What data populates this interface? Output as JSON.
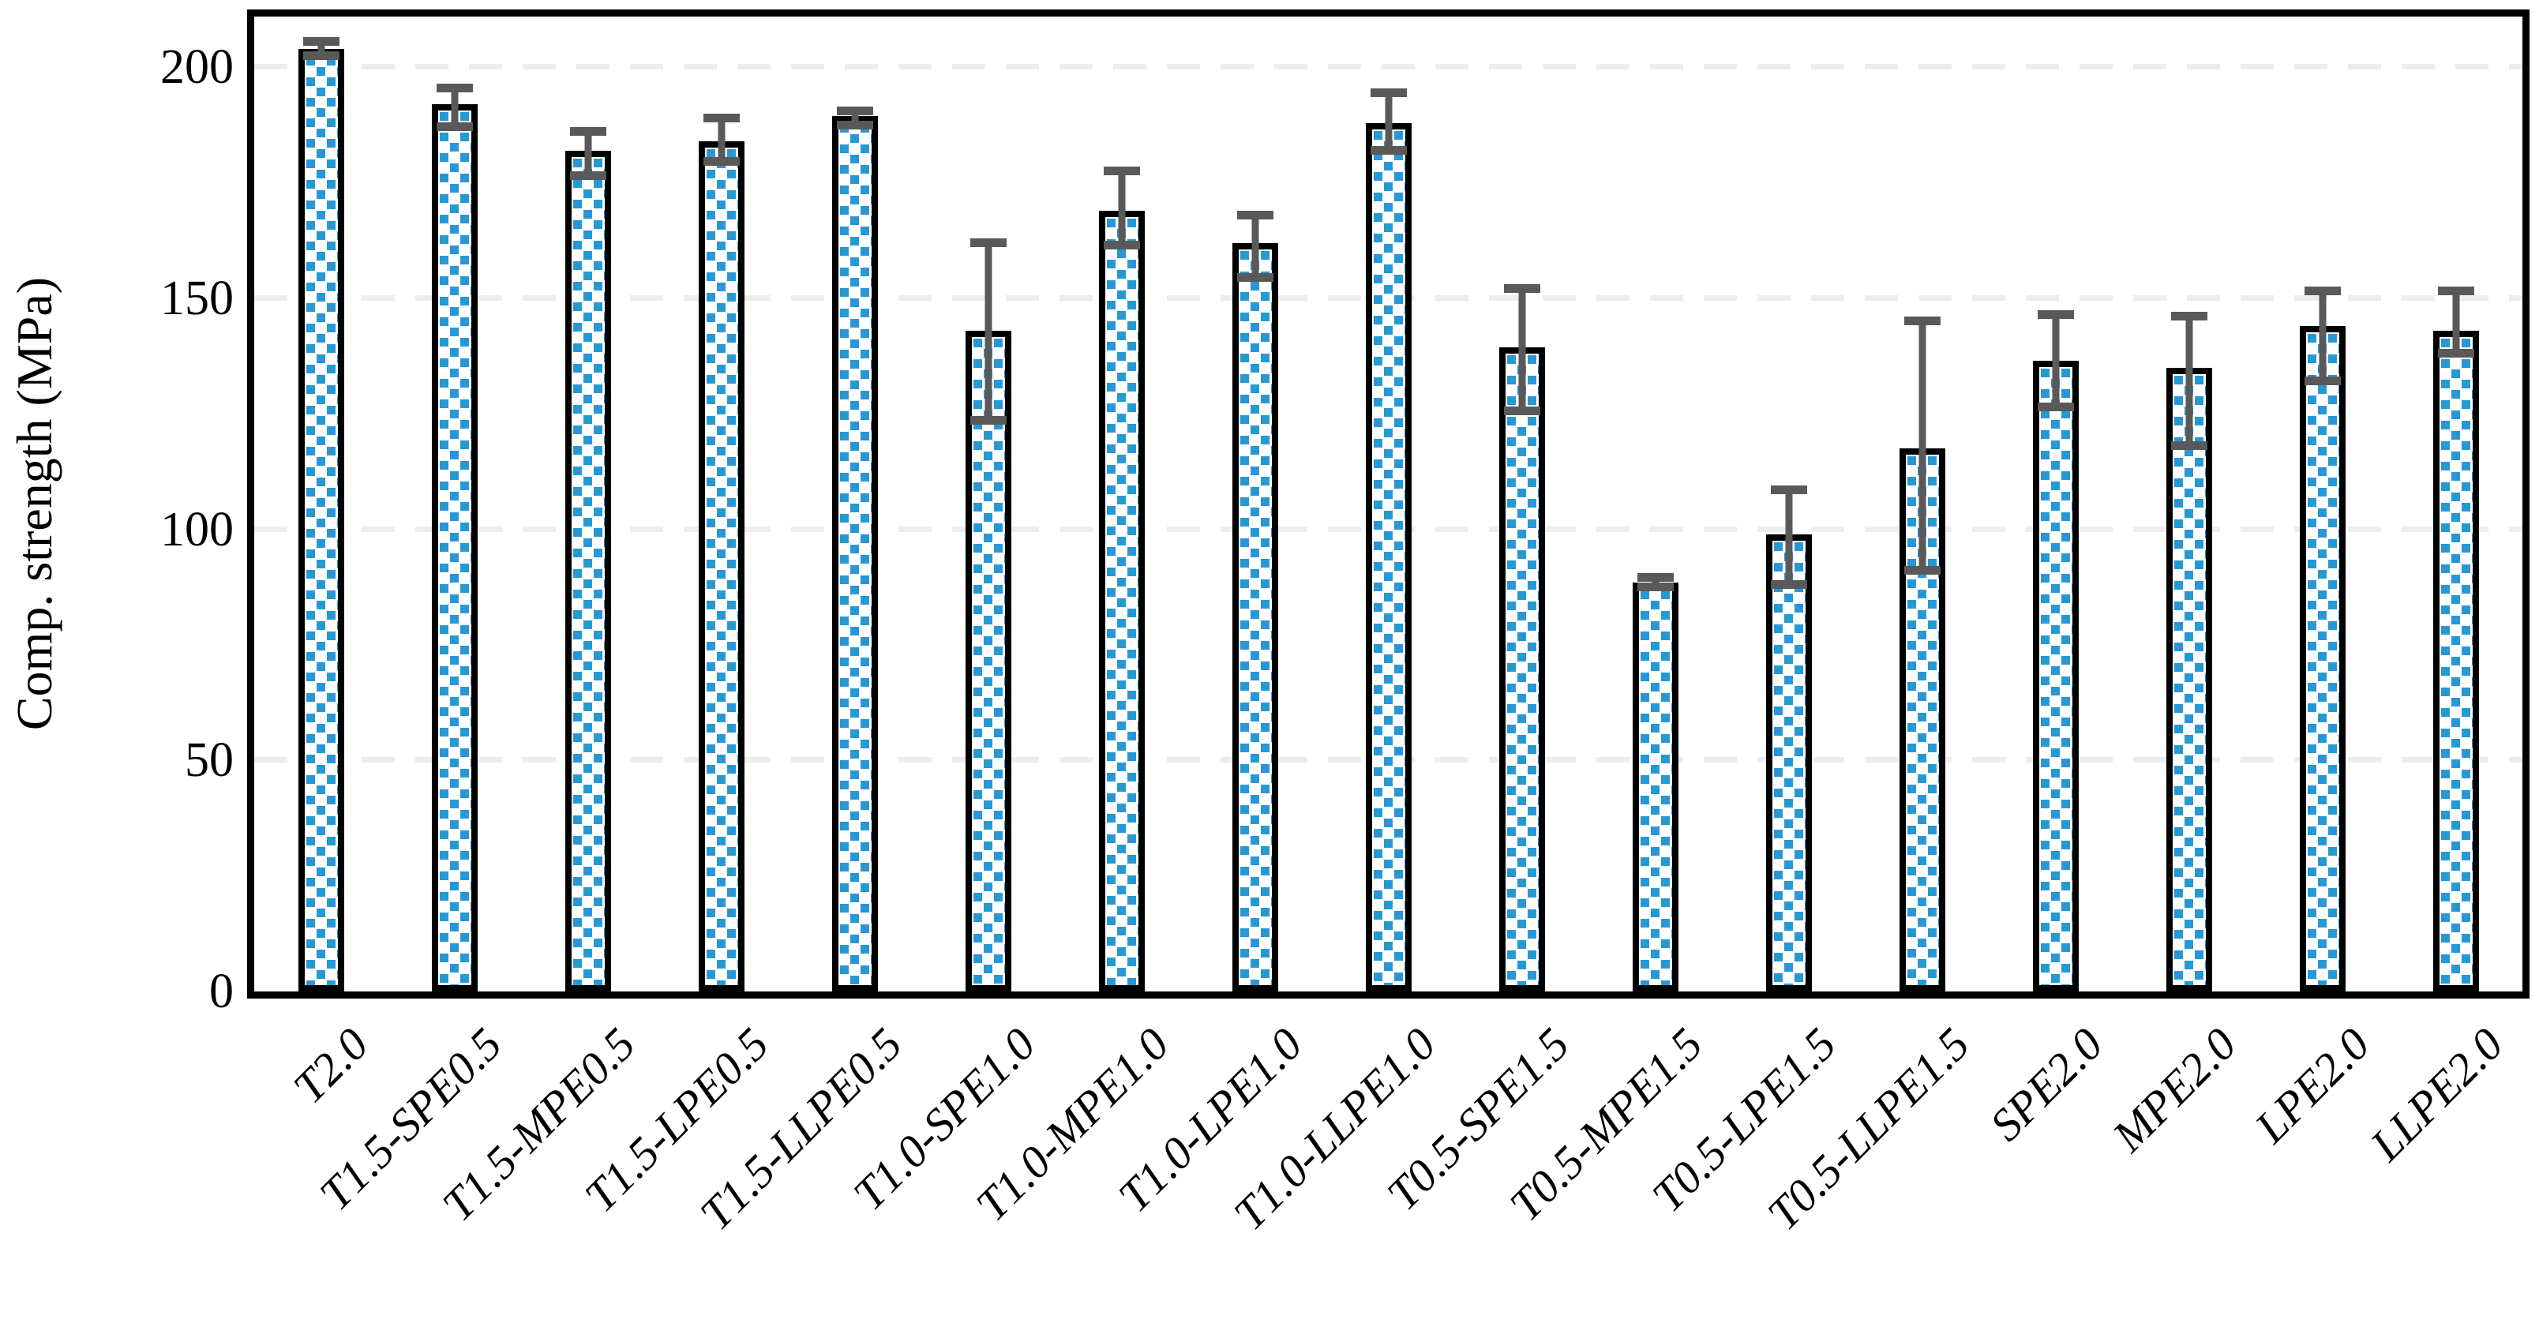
{
  "figure": {
    "background_color": "#ffffff",
    "bar_fill_pattern_color": "#2798d4",
    "bar_border_color": "#000000",
    "error_bar_color": "#595959",
    "gridline_color": "#ededed"
  },
  "chart_data": {
    "type": "bar",
    "title": "",
    "xlabel": "",
    "ylabel": "Comp. strength (MPa)",
    "ylim": [
      0,
      211
    ],
    "yticks": [
      0,
      50,
      100,
      150,
      200
    ],
    "grid": "horizontal dashed gridlines at 50, 100, 150, 200",
    "legend_position": "none",
    "categories": [
      "T2.0",
      "T1.5-SPE0.5",
      "T1.5-MPE0.5",
      "T1.5-LPE0.5",
      "T1.5-LLPE0.5",
      "T1.0-SPE1.0",
      "T1.0-MPE1.0",
      "T1.0-LPE1.0",
      "T1.0-LLPE1.0",
      "T0.5-SPE1.5",
      "T0.5-MPE1.5",
      "T0.5-LPE1.5",
      "T0.5-LLPE1.5",
      "SPE2.0",
      "MPE2.0",
      "LPE2.0",
      "LLPE2.0"
    ],
    "series": [
      {
        "name": "Comp. strength (MPa)",
        "values": [
          204,
          192,
          182,
          184,
          189.5,
          143,
          169,
          162,
          188,
          139.5,
          88.5,
          99,
          117.5,
          136.5,
          135,
          144,
          143
        ],
        "error_high": [
          205.5,
          195.5,
          186,
          189,
          190.5,
          162,
          177.5,
          168,
          194.5,
          152,
          89.5,
          108.5,
          145,
          146.5,
          146,
          151.5,
          151.5
        ],
        "error_low": [
          202.5,
          187,
          176.5,
          179.5,
          187.5,
          123.5,
          161.5,
          154.5,
          182,
          125.5,
          87.5,
          88,
          91,
          126.5,
          118,
          132,
          138
        ]
      }
    ]
  }
}
